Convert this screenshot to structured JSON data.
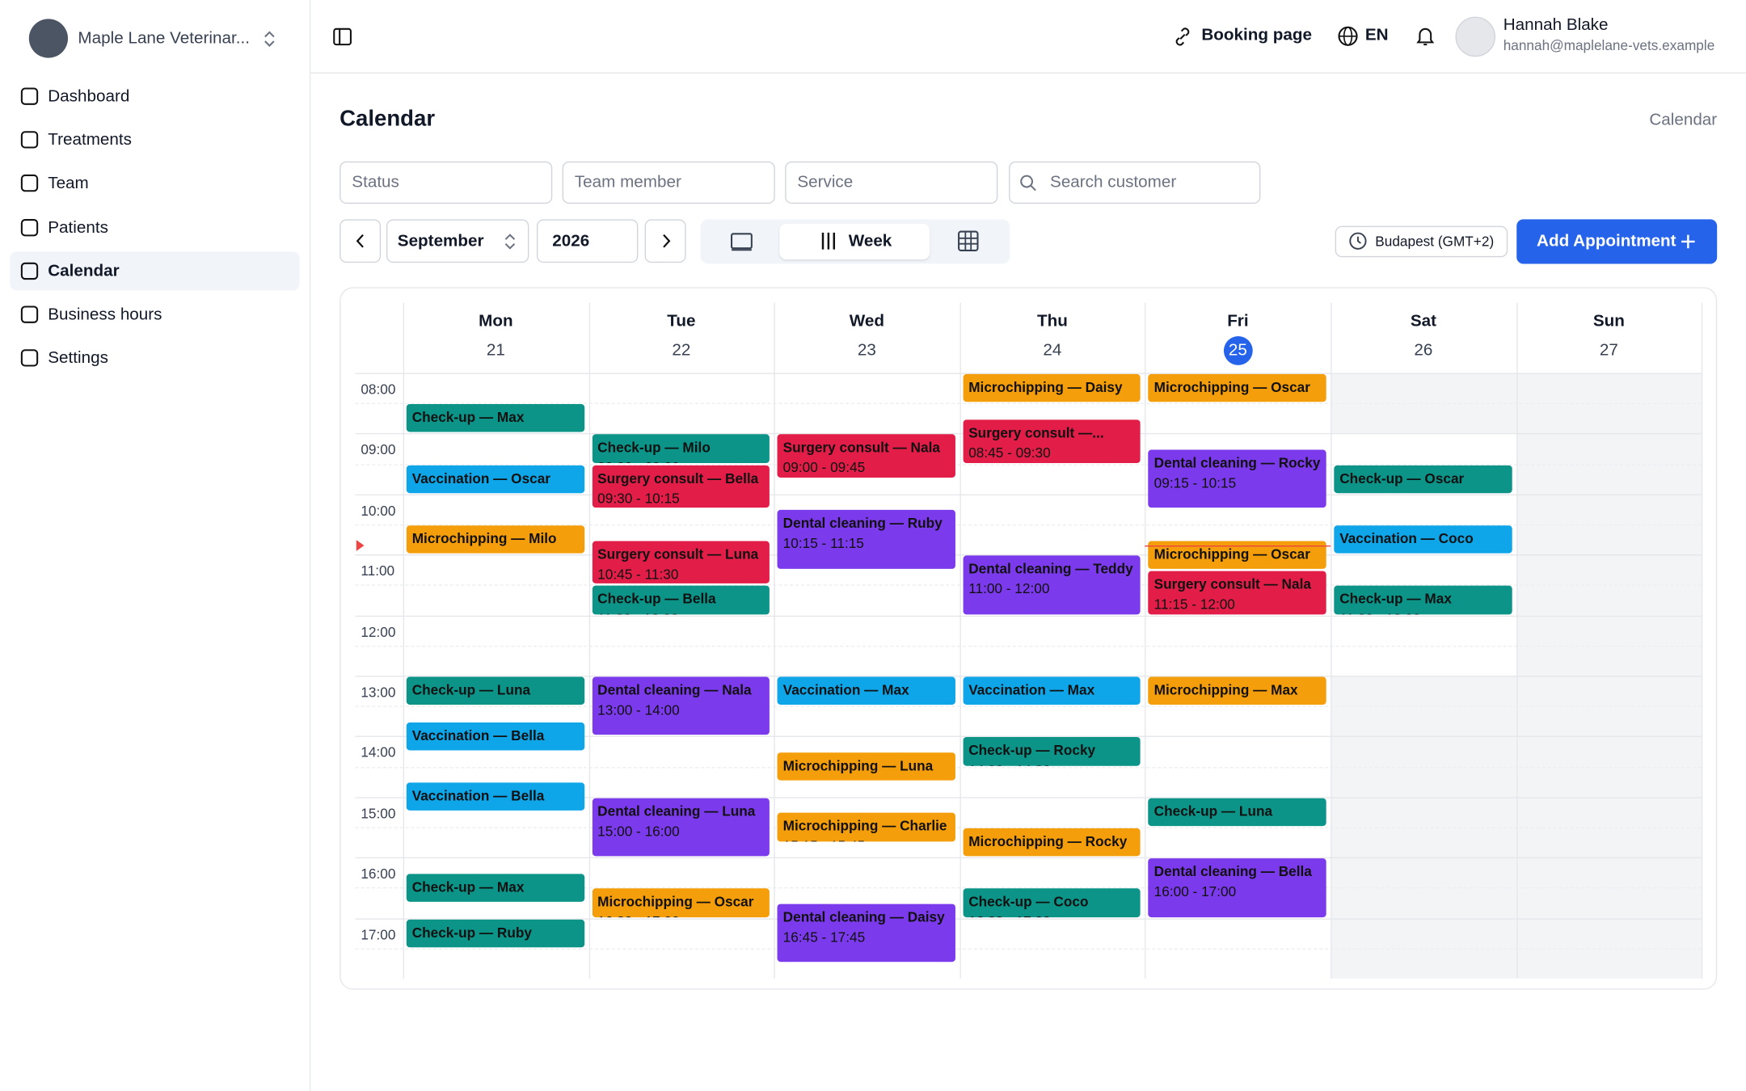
{
  "sidebar": {
    "org": "Maple Lane Veterinar...",
    "nav": [
      "Dashboard",
      "Treatments",
      "Team",
      "Patients",
      "Calendar",
      "Business hours",
      "Settings"
    ],
    "active": 4
  },
  "topbar": {
    "booking": "Booking page",
    "language": "EN",
    "user_name": "Hannah Blake",
    "user_email": "hannah@maplelane-vets.example"
  },
  "page": {
    "title": "Calendar",
    "breadcrumb": "Calendar"
  },
  "filters": [
    "Status",
    "Team member",
    "Service",
    "Search customer"
  ],
  "toolbar": {
    "month": "September",
    "year": "2026",
    "view": "Week",
    "timezone": "Budapest (GMT+2)",
    "add_button": "Add Appointment"
  },
  "hours": [
    "08:00",
    "09:00",
    "10:00",
    "11:00",
    "12:00",
    "13:00",
    "14:00",
    "15:00",
    "16:00",
    "17:00"
  ],
  "days": [
    {
      "name": "Mon",
      "date": "21",
      "events": [
        {
          "title": "Check-up — Max",
          "time": "08:30 - 09:00",
          "color": "#0d9488"
        },
        {
          "title": "Vaccination — Oscar",
          "time": "09:30 - 10:00",
          "color": "#0ea5e9"
        },
        {
          "title": "Microchipping — Milo",
          "time": "10:30 - 11:00",
          "color": "#f59e0b"
        },
        {
          "title": "Check-up — Luna",
          "time": "13:00 - 13:30",
          "color": "#0d9488"
        },
        {
          "title": "Vaccination — Bella",
          "time": "13:45 - 14:15",
          "color": "#0ea5e9"
        },
        {
          "title": "Vaccination — Bella",
          "time": "14:45 - 15:15",
          "color": "#0ea5e9"
        },
        {
          "title": "Check-up — Max",
          "time": "16:15 - 16:45",
          "color": "#0d9488"
        },
        {
          "title": "Check-up — Ruby",
          "time": "17:00 - 17:30",
          "color": "#0d9488"
        }
      ]
    },
    {
      "name": "Tue",
      "date": "22",
      "events": [
        {
          "title": "Check-up — Milo",
          "time": "09:00 - 09:30",
          "color": "#0d9488"
        },
        {
          "title": "Surgery consult — Bella",
          "time": "09:30 - 10:15",
          "color": "#e11d48"
        },
        {
          "title": "Surgery consult — Luna",
          "time": "10:45 - 11:30",
          "color": "#e11d48"
        },
        {
          "title": "Check-up — Bella",
          "time": "11:30 - 12:00",
          "color": "#0d9488"
        },
        {
          "title": "Dental cleaning — Nala",
          "time": "13:00 - 14:00",
          "color": "#7c3aed"
        },
        {
          "title": "Dental cleaning — Luna",
          "time": "15:00 - 16:00",
          "color": "#7c3aed"
        },
        {
          "title": "Microchipping — Oscar",
          "time": "16:30 - 17:00",
          "color": "#f59e0b"
        }
      ]
    },
    {
      "name": "Wed",
      "date": "23",
      "events": [
        {
          "title": "Surgery consult — Nala",
          "time": "09:00 - 09:45",
          "color": "#e11d48"
        },
        {
          "title": "Dental cleaning — Ruby",
          "time": "10:15 - 11:15",
          "color": "#7c3aed"
        },
        {
          "title": "Vaccination — Max",
          "time": "13:00 - 13:30",
          "color": "#0ea5e9"
        },
        {
          "title": "Microchipping — Luna",
          "time": "14:15 - 14:45",
          "color": "#f59e0b"
        },
        {
          "title": "Microchipping — Charlie",
          "time": "15:15 - 15:45",
          "color": "#f59e0b"
        },
        {
          "title": "Dental cleaning — Daisy",
          "time": "16:45 - 17:45",
          "color": "#7c3aed"
        }
      ]
    },
    {
      "name": "Thu",
      "date": "24",
      "events": [
        {
          "title": "Microchipping — Daisy",
          "time": "08:00 - 08:30",
          "color": "#f59e0b"
        },
        {
          "title": "Surgery consult —...",
          "time": "08:45 - 09:30",
          "color": "#e11d48"
        },
        {
          "title": "Dental cleaning — Teddy",
          "time": "11:00 - 12:00",
          "color": "#7c3aed"
        },
        {
          "title": "Vaccination — Max",
          "time": "13:00 - 13:30",
          "color": "#0ea5e9"
        },
        {
          "title": "Check-up — Rocky",
          "time": "14:00 - 14:30",
          "color": "#0d9488"
        },
        {
          "title": "Microchipping — Rocky",
          "time": "15:30 - 16:00",
          "color": "#f59e0b"
        },
        {
          "title": "Check-up — Coco",
          "time": "16:30 - 17:00",
          "color": "#0d9488"
        }
      ]
    },
    {
      "name": "Fri",
      "date": "25",
      "today": true,
      "events": [
        {
          "title": "Microchipping — Oscar",
          "time": "08:00 - 08:30",
          "color": "#f59e0b"
        },
        {
          "title": "Dental cleaning — Rocky",
          "time": "09:15 - 10:15",
          "color": "#7c3aed"
        },
        {
          "title": "Microchipping — Oscar",
          "time": "10:45 - 11:15",
          "color": "#f59e0b"
        },
        {
          "title": "Surgery consult — Nala",
          "time": "11:15 - 12:00",
          "color": "#e11d48"
        },
        {
          "title": "Microchipping — Max",
          "time": "13:00 - 13:30",
          "color": "#f59e0b"
        },
        {
          "title": "Check-up — Luna",
          "time": "15:00 - 15:30",
          "color": "#0d9488"
        },
        {
          "title": "Dental cleaning — Bella",
          "time": "16:00 - 17:00",
          "color": "#7c3aed"
        }
      ]
    },
    {
      "name": "Sat",
      "date": "26",
      "events": [
        {
          "title": "Check-up — Oscar",
          "time": "09:30 - 10:00",
          "color": "#0d9488"
        },
        {
          "title": "Vaccination — Coco",
          "time": "10:30 - 11:00",
          "color": "#0ea5e9"
        },
        {
          "title": "Check-up — Max",
          "time": "11:30 - 12:00",
          "color": "#0d9488"
        }
      ]
    },
    {
      "name": "Sun",
      "date": "27",
      "events": []
    }
  ]
}
